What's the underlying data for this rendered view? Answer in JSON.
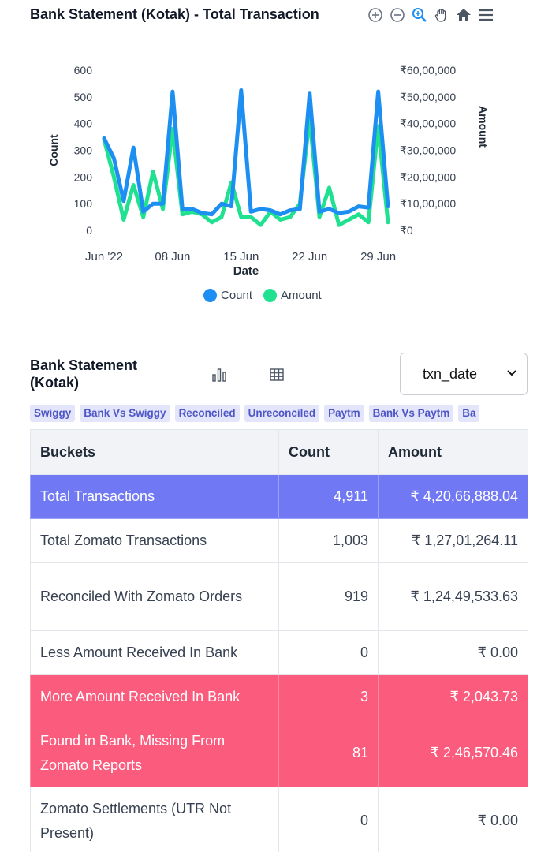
{
  "chart_title": "Bank Statement (Kotak) - Total Transaction",
  "toolbar": {
    "icons": [
      "zoom-in-icon",
      "zoom-out-icon",
      "selection-zoom-icon",
      "pan-icon",
      "home-icon",
      "menu-icon"
    ]
  },
  "chart_data": {
    "type": "line",
    "x": [
      "Jun 1",
      "Jun 2",
      "Jun 3",
      "Jun 4",
      "Jun 5",
      "Jun 6",
      "Jun 7",
      "Jun 8",
      "Jun 9",
      "Jun 10",
      "Jun 11",
      "Jun 12",
      "Jun 13",
      "Jun 14",
      "Jun 15",
      "Jun 16",
      "Jun 17",
      "Jun 18",
      "Jun 19",
      "Jun 20",
      "Jun 21",
      "Jun 22",
      "Jun 23",
      "Jun 24",
      "Jun 25",
      "Jun 26",
      "Jun 27",
      "Jun 28",
      "Jun 29",
      "Jun 30"
    ],
    "x_tick_labels": [
      "Jun '22",
      "08 Jun",
      "15 Jun",
      "22 Jun",
      "29 Jun"
    ],
    "xlabel": "Date",
    "y_left_label": "Count",
    "y_left_ticks": [
      "0",
      "100",
      "200",
      "300",
      "400",
      "500",
      "600"
    ],
    "y_left_range": [
      0,
      600
    ],
    "y_right_label": "Amount",
    "y_right_ticks": [
      "₹0",
      "₹10,00,000",
      "₹20,00,000",
      "₹30,00,000",
      "₹40,00,000",
      "₹50,00,000",
      "₹60,00,000"
    ],
    "y_right_range": [
      0,
      6000000
    ],
    "series": [
      {
        "name": "Count",
        "axis": "left",
        "color": "#1e8ff2",
        "values": [
          345,
          270,
          110,
          310,
          70,
          100,
          100,
          520,
          80,
          80,
          65,
          60,
          100,
          90,
          525,
          70,
          80,
          75,
          60,
          75,
          80,
          515,
          70,
          80,
          65,
          70,
          90,
          85,
          520,
          90
        ]
      },
      {
        "name": "Amount",
        "axis": "right",
        "color": "#20e190",
        "values": [
          3400000,
          2000000,
          400000,
          1700000,
          500000,
          2200000,
          800000,
          3800000,
          600000,
          700000,
          600000,
          300000,
          500000,
          1800000,
          500000,
          500000,
          200000,
          700000,
          400000,
          500000,
          1000000,
          4200000,
          500000,
          1600000,
          200000,
          400000,
          600000,
          300000,
          3900000,
          300000
        ]
      }
    ],
    "legend": "bottom-center",
    "grid": false
  },
  "legend": [
    {
      "label": "Count",
      "color": "#1e8ff2"
    },
    {
      "label": "Amount",
      "color": "#20e190"
    }
  ],
  "report": {
    "title": "Bank Statement (Kotak)",
    "select_value": "txn_date",
    "tags": [
      "Swiggy",
      "Bank Vs Swiggy",
      "Reconciled",
      "Unreconciled",
      "Paytm",
      "Bank Vs Paytm",
      "Ba"
    ],
    "columns": [
      "Buckets",
      "Count",
      "Amount"
    ],
    "rows": [
      {
        "bucket": "Total Transactions",
        "count": "4,911",
        "amount": "₹ 4,20,66,888.04"
      },
      {
        "bucket": "Total Zomato Transactions",
        "count": "1,003",
        "amount": "₹ 1,27,01,264.11"
      },
      {
        "bucket": "Reconciled With Zomato Orders",
        "count": "919",
        "amount": "₹ 1,24,49,533.63"
      },
      {
        "bucket": "Less Amount Received In Bank",
        "count": "0",
        "amount": "₹ 0.00"
      },
      {
        "bucket": "More Amount Received In Bank",
        "count": "3",
        "amount": "₹ 2,043.73"
      },
      {
        "bucket": "Found in Bank, Missing From Zomato Reports",
        "count": "81",
        "amount": "₹ 2,46,570.46"
      },
      {
        "bucket": "Zomato Settlements (UTR Not Present)",
        "count": "0",
        "amount": "₹ 0.00"
      }
    ]
  }
}
